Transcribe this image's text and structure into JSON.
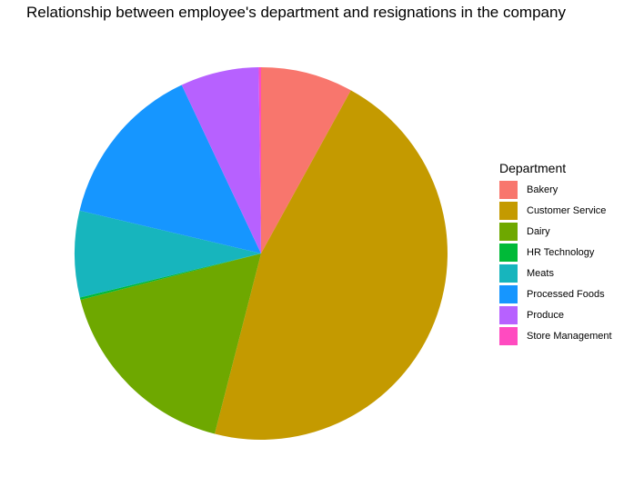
{
  "chart_data": {
    "type": "pie",
    "title": "Relationship between employee's department and resignations in the company",
    "legend_title": "Department",
    "legend_position": "right",
    "start": "top, clockwise",
    "slices": [
      {
        "label": "Bakery",
        "value": 0.08,
        "color": "#F8766D"
      },
      {
        "label": "Customer Service",
        "value": 0.46,
        "color": "#C49A00"
      },
      {
        "label": "Dairy",
        "value": 0.17,
        "color": "#6EA800"
      },
      {
        "label": "HR Technology",
        "value": 0.002,
        "color": "#00BA38"
      },
      {
        "label": "Meats",
        "value": 0.075,
        "color": "#17B5BD"
      },
      {
        "label": "Processed Foods",
        "value": 0.143,
        "color": "#1696FF"
      },
      {
        "label": "Produce",
        "value": 0.068,
        "color": "#B761FF"
      },
      {
        "label": "Store Management",
        "value": 0.002,
        "color": "#FF4BC0"
      }
    ]
  }
}
